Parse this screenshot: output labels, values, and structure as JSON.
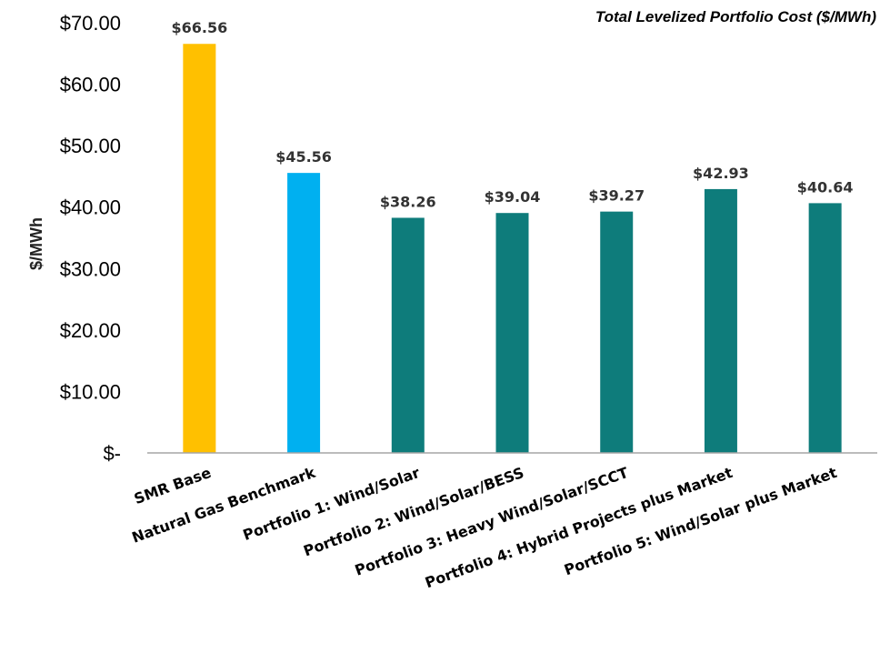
{
  "chart_data": {
    "type": "bar",
    "title": "Total Levelized Portfolio Cost ($/MWh)",
    "xlabel": "",
    "ylabel": "$/MWh",
    "ylim": [
      0,
      70
    ],
    "grid": false,
    "legend": "none",
    "y_ticks": [
      {
        "value": 0,
        "label": "$-"
      },
      {
        "value": 10,
        "label": "$10.00"
      },
      {
        "value": 20,
        "label": "$20.00"
      },
      {
        "value": 30,
        "label": "$30.00"
      },
      {
        "value": 40,
        "label": "$40.00"
      },
      {
        "value": 50,
        "label": "$50.00"
      },
      {
        "value": 60,
        "label": "$60.00"
      },
      {
        "value": 70,
        "label": "$70.00"
      }
    ],
    "categories": [
      "SMR Base",
      "Natural Gas Benchmark",
      "Portfolio 1: Wind/Solar",
      "Portfolio 2: Wind/Solar/BESS",
      "Portfolio 3: Heavy Wind/Solar/SCCT",
      "Portfolio 4: Hybrid Projects plus Market",
      "Portfolio 5: Wind/Solar plus Market"
    ],
    "values": [
      66.56,
      45.56,
      38.26,
      39.04,
      39.27,
      42.93,
      40.64
    ],
    "data_labels": [
      "$66.56",
      "$45.56",
      "$38.26",
      "$39.04",
      "$39.27",
      "$42.93",
      "$40.64"
    ],
    "colors": [
      "#FFC000",
      "#00B0F0",
      "#0E7C7B",
      "#0E7C7B",
      "#0E7C7B",
      "#0E7C7B",
      "#0E7C7B"
    ],
    "axis_color": "#A6A6A6"
  }
}
